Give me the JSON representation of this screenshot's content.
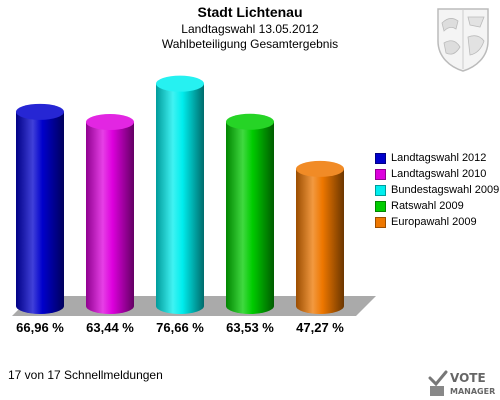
{
  "header": {
    "title": "Stadt Lichtenau",
    "subtitle1": "Landtagswahl 13.05.2012",
    "subtitle2": "Wahlbeteiligung Gesamtergebnis"
  },
  "footer": {
    "text": "17 von 17 Schnellmeldungen"
  },
  "logo": {
    "line1": "VOTE",
    "line2": "MANAGER"
  },
  "chart_data": {
    "type": "bar",
    "title": "Stadt Lichtenau",
    "subtitle": "Landtagswahl 13.05.2012 Wahlbeteiligung Gesamtergebnis",
    "categories": [
      "Landtagswahl 2012",
      "Landtagswahl 2010",
      "Bundestagswahl 2009",
      "Ratswahl 2009",
      "Europawahl 2009"
    ],
    "values": [
      66.96,
      63.44,
      76.66,
      63.53,
      47.27
    ],
    "value_labels": [
      "66,96 %",
      "63,44 %",
      "76,66 %",
      "63,53 %",
      "47,27 %"
    ],
    "unit": "%",
    "colors": [
      "#0000cc",
      "#dd00dd",
      "#00eeee",
      "#00cc00",
      "#ee7700"
    ],
    "legend": "right",
    "grid": false,
    "ylim": [
      0,
      100
    ]
  }
}
